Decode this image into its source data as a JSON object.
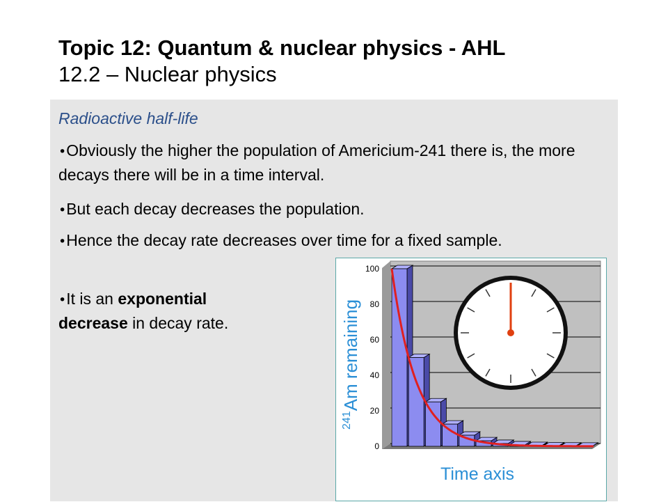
{
  "title": {
    "line1": "Topic 12: Quantum & nuclear physics - AHL",
    "line2": "12.2 – Nuclear physics"
  },
  "content": {
    "subtitle": "Radioactive half-life",
    "bullet_symbol": "•",
    "bullets": [
      {
        "text": "Obviously the higher the population of Americium-241 there is, the more decays there will be in a time interval."
      },
      {
        "text": "But each decay decreases the population."
      },
      {
        "text": "Hence the decay rate decreases over time for a fixed sample."
      },
      {
        "before": "It is an ",
        "bold1": "exponential",
        "bold2": "decrease",
        "after": " in decay rate."
      }
    ]
  },
  "chart_data": {
    "type": "bar",
    "ylabel_superscript": "241",
    "ylabel_main": "Am remaining",
    "xlabel": "Time axis",
    "ylim": [
      0,
      100
    ],
    "y_ticks": [
      "0",
      "20",
      "40",
      "60",
      "80",
      "100"
    ],
    "values": [
      100,
      50,
      25,
      12.5,
      6.25,
      3.1,
      1.6,
      0.8,
      0.4,
      0.2,
      0.1,
      0.05
    ],
    "curve": "exponential decay",
    "colors": {
      "bar": "#8c8cf0",
      "curve": "#e02020",
      "plot_bg": "#c0c0c0",
      "clock_hand": "#e04010"
    }
  },
  "colors": {
    "panel": "#e6e6e6",
    "subtitle": "#2b4f8a",
    "chart_border": "#5aa8a8"
  }
}
